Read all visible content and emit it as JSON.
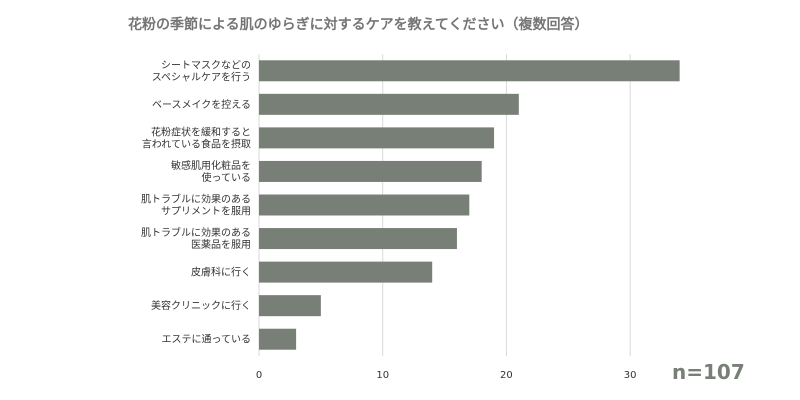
{
  "chart_data": {
    "type": "bar",
    "orientation": "horizontal",
    "title": "花粉の季節による肌のゆらぎに対するケアを教えてください（複数回答）",
    "categories": [
      [
        "シートマスクなどの",
        "スペシャルケアを行う"
      ],
      [
        "ベースメイクを控える"
      ],
      [
        "花粉症状を緩和すると",
        "言われている食品を摂取"
      ],
      [
        "敏感肌用化粧品を",
        "使っている"
      ],
      [
        "肌トラブルに効果のある",
        "サプリメントを服用"
      ],
      [
        "肌トラブルに効果のある",
        "医薬品を服用"
      ],
      [
        "皮膚科に行く"
      ],
      [
        "美容クリニックに行く"
      ],
      [
        "エステに通っている"
      ]
    ],
    "values": [
      34,
      21,
      19,
      18,
      17,
      16,
      14,
      5,
      3
    ],
    "xlim": [
      0,
      35
    ],
    "xticks": [
      0,
      10,
      20,
      30
    ],
    "grid": "vertical",
    "legend": "none",
    "bar_color": "#787f76",
    "grid_color": "#d9d9d9",
    "annotation": "n=107"
  }
}
